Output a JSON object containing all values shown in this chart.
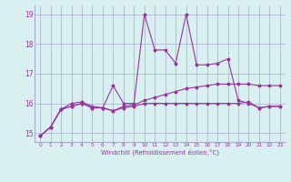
{
  "x": [
    0,
    1,
    2,
    3,
    4,
    5,
    6,
    7,
    8,
    9,
    10,
    11,
    12,
    13,
    14,
    15,
    16,
    17,
    18,
    19,
    20,
    21,
    22,
    23
  ],
  "line1": [
    14.9,
    15.2,
    15.8,
    15.9,
    16.0,
    15.85,
    15.85,
    15.75,
    15.85,
    15.9,
    16.0,
    16.0,
    16.0,
    16.0,
    16.0,
    16.0,
    16.0,
    16.0,
    16.0,
    16.0,
    16.05,
    15.85,
    15.9,
    15.9
  ],
  "line2": [
    14.9,
    15.2,
    15.8,
    15.9,
    16.0,
    15.85,
    15.85,
    15.75,
    15.9,
    15.95,
    16.1,
    16.2,
    16.3,
    16.4,
    16.5,
    16.55,
    16.6,
    16.65,
    16.65,
    16.65,
    16.65,
    16.6,
    16.6,
    16.6
  ],
  "line3": [
    14.9,
    15.2,
    15.8,
    16.0,
    16.05,
    15.9,
    15.85,
    16.6,
    16.0,
    16.0,
    19.0,
    17.8,
    17.8,
    17.35,
    19.0,
    17.3,
    17.3,
    17.35,
    17.5,
    16.1,
    16.0,
    15.85,
    15.9,
    15.9
  ],
  "color": "#9b30a0",
  "background": "#d8f0f0",
  "grid_color": "#aaaacc",
  "ylim": [
    14.7,
    19.3
  ],
  "xlim": [
    -0.5,
    23.5
  ],
  "xlabel": "Windchill (Refroidissement éolien,°C)",
  "yticks": [
    15,
    16,
    17,
    18,
    19
  ],
  "xticks": [
    0,
    1,
    2,
    3,
    4,
    5,
    6,
    7,
    8,
    9,
    10,
    11,
    12,
    13,
    14,
    15,
    16,
    17,
    18,
    19,
    20,
    21,
    22,
    23
  ]
}
